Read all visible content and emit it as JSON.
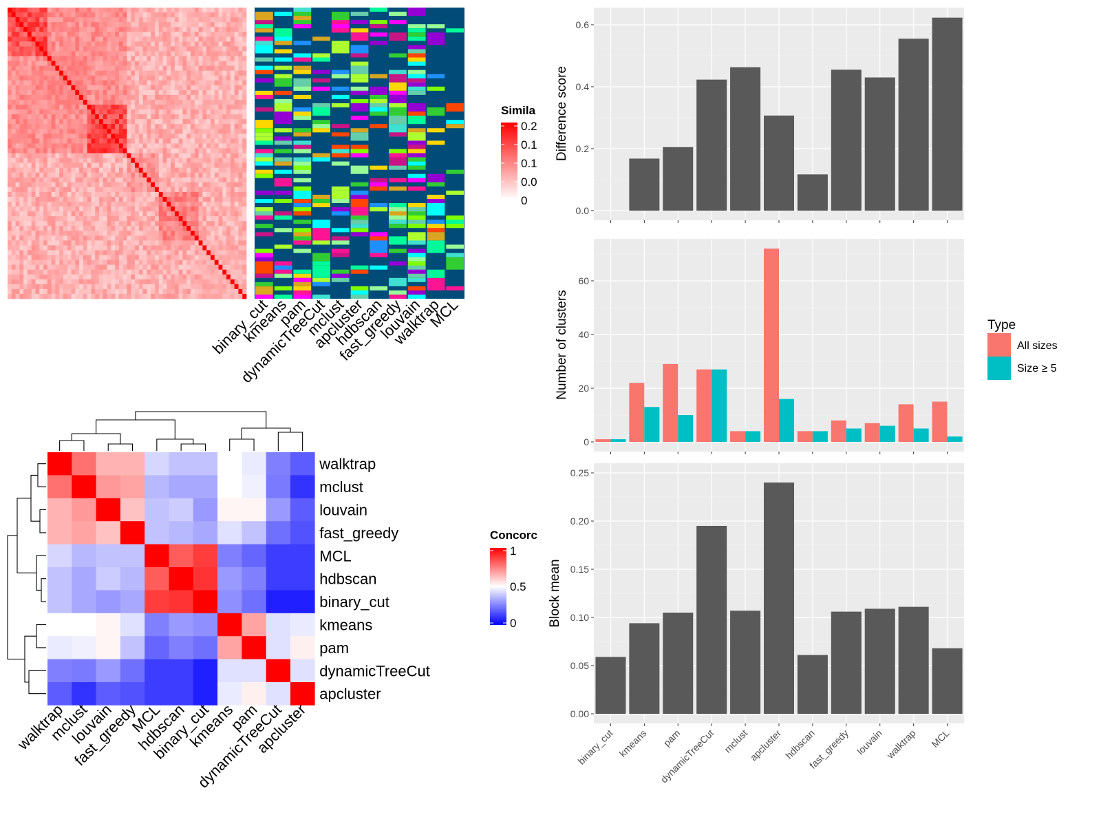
{
  "colors": {
    "panel_bg": "#ebebeb",
    "grid_major": "#ffffff",
    "bar_fill": "#595959",
    "all_sizes": "#f8766d",
    "size_ge_5": "#00bfc4",
    "similarity_high": "#ff0000",
    "similarity_low": "#ffffff",
    "concordance_high": "#ff0000",
    "concordance_mid": "#ffffff",
    "concordance_low": "#0000ff",
    "membership_bg": "#004b78"
  },
  "heatmap_similarity": {
    "legend_title": "Simila",
    "legend_ticks": [
      "0.2",
      "0.1",
      "0.1",
      "0.0",
      "0"
    ],
    "column_labels": [
      "binary_cut",
      "kmeans",
      "pam",
      "dynamicTreeCut",
      "mclust",
      "apcluster",
      "hdbscan",
      "fast_greedy",
      "louvain",
      "walktrap",
      "MCL"
    ]
  },
  "heatmap_concordance": {
    "legend_title": "Concorc",
    "legend_ticks": [
      "1",
      "0.5",
      "0"
    ],
    "row_labels": [
      "walktrap",
      "mclust",
      "louvain",
      "fast_greedy",
      "MCL",
      "hdbscan",
      "binary_cut",
      "kmeans",
      "pam",
      "dynamicTreeCut",
      "apcluster"
    ],
    "column_labels": [
      "walktrap",
      "mclust",
      "louvain",
      "fast_greedy",
      "MCL",
      "hdbscan",
      "binary_cut",
      "kmeans",
      "pam",
      "dynamicTreeCut",
      "apcluster"
    ],
    "values": [
      [
        1.0,
        0.78,
        0.65,
        0.65,
        0.42,
        0.38,
        0.38,
        0.5,
        0.46,
        0.25,
        0.18
      ],
      [
        0.78,
        1.0,
        0.7,
        0.68,
        0.36,
        0.33,
        0.33,
        0.5,
        0.47,
        0.24,
        0.1
      ],
      [
        0.65,
        0.7,
        1.0,
        0.62,
        0.38,
        0.4,
        0.3,
        0.52,
        0.52,
        0.3,
        0.18
      ],
      [
        0.65,
        0.68,
        0.62,
        1.0,
        0.38,
        0.36,
        0.33,
        0.44,
        0.38,
        0.22,
        0.16
      ],
      [
        0.42,
        0.36,
        0.38,
        0.38,
        1.0,
        0.82,
        0.88,
        0.25,
        0.2,
        0.12,
        0.12
      ],
      [
        0.38,
        0.33,
        0.4,
        0.36,
        0.82,
        1.0,
        0.9,
        0.3,
        0.25,
        0.12,
        0.12
      ],
      [
        0.38,
        0.33,
        0.3,
        0.33,
        0.88,
        0.9,
        1.0,
        0.28,
        0.22,
        0.06,
        0.06
      ],
      [
        0.5,
        0.5,
        0.52,
        0.44,
        0.25,
        0.3,
        0.28,
        1.0,
        0.68,
        0.44,
        0.46
      ],
      [
        0.46,
        0.47,
        0.52,
        0.38,
        0.2,
        0.25,
        0.22,
        0.68,
        1.0,
        0.44,
        0.53
      ],
      [
        0.25,
        0.24,
        0.3,
        0.22,
        0.12,
        0.12,
        0.06,
        0.44,
        0.44,
        1.0,
        0.44
      ],
      [
        0.18,
        0.1,
        0.18,
        0.16,
        0.12,
        0.12,
        0.06,
        0.46,
        0.53,
        0.44,
        1.0
      ]
    ]
  },
  "chart_data": [
    {
      "type": "bar",
      "categories": [
        "binary_cut",
        "kmeans",
        "pam",
        "dynamicTreeCut",
        "mclust",
        "apcluster",
        "hdbscan",
        "fast_greedy",
        "louvain",
        "walktrap",
        "MCL"
      ],
      "values": [
        0.0,
        0.168,
        0.205,
        0.423,
        0.463,
        0.307,
        0.117,
        0.455,
        0.43,
        0.555,
        0.623
      ],
      "title": "",
      "xlabel": "",
      "ylabel": "Difference score",
      "yticks": [
        "0.0",
        "0.2",
        "0.4",
        "0.6"
      ],
      "ylim": [
        0,
        0.65
      ]
    },
    {
      "type": "bar",
      "categories": [
        "binary_cut",
        "kmeans",
        "pam",
        "dynamicTreeCut",
        "mclust",
        "apcluster",
        "hdbscan",
        "fast_greedy",
        "louvain",
        "walktrap",
        "MCL"
      ],
      "series": [
        {
          "name": "All sizes",
          "values": [
            1,
            22,
            29,
            27,
            4,
            72,
            4,
            8,
            7,
            14,
            15
          ]
        },
        {
          "name": "Size ≥ 5",
          "values": [
            1,
            13,
            10,
            27,
            4,
            16,
            4,
            5,
            6,
            5,
            2
          ]
        }
      ],
      "title": "",
      "xlabel": "",
      "ylabel": "Number of clusters",
      "yticks": [
        "0",
        "20",
        "40",
        "60"
      ],
      "ylim": [
        0,
        75
      ],
      "legend_title": "Type",
      "legend_position": "right"
    },
    {
      "type": "bar",
      "categories": [
        "binary_cut",
        "kmeans",
        "pam",
        "dynamicTreeCut",
        "mclust",
        "apcluster",
        "hdbscan",
        "fast_greedy",
        "louvain",
        "walktrap",
        "MCL"
      ],
      "values": [
        0.059,
        0.094,
        0.105,
        0.195,
        0.107,
        0.24,
        0.061,
        0.106,
        0.109,
        0.111,
        0.068
      ],
      "title": "",
      "xlabel": "",
      "ylabel": "Block mean",
      "yticks": [
        "0.00",
        "0.05",
        "0.10",
        "0.15",
        "0.20",
        "0.25"
      ],
      "ylim": [
        0,
        0.255
      ]
    }
  ]
}
